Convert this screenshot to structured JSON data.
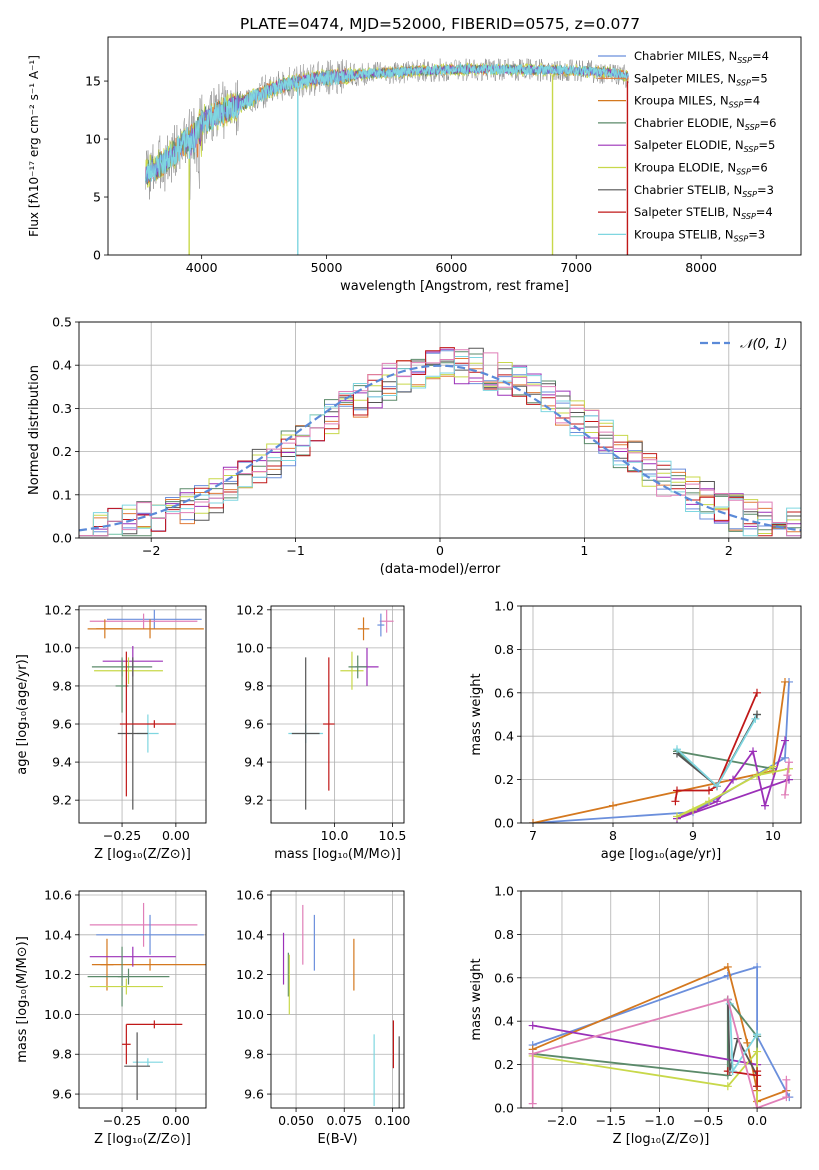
{
  "figure_title": "PLATE=0474, MJD=52000, FIBERID=0575, z=0.077",
  "colors": {
    "Chabrier MILES": "#6b8fdc",
    "Salpeter MILES": "#e07b39",
    "Kroupa MILES": "#d4781f",
    "Chabrier ELODIE": "#5b8a6a",
    "Salpeter ELODIE": "#9b30b8",
    "Kroupa ELODIE": "#c8d84a",
    "Chabrier STELIB": "#555555",
    "Salpeter STELIB": "#c01818",
    "Kroupa STELIB": "#7fd6e0",
    "pink": "#e07fb8",
    "normal_curve": "#5b8ad8"
  },
  "chart_data": [
    {
      "id": "spectrum",
      "type": "line",
      "title": "PLATE=0474, MJD=52000, FIBERID=0575, z=0.077",
      "xlabel": "wavelength [Angstrom, rest frame]",
      "ylabel": "Flux [fλ10⁻¹⁷ erg cm⁻² s⁻¹ A⁻¹]",
      "xlim": [
        3250,
        8800
      ],
      "ylim": [
        0,
        18.8
      ],
      "xticks": [
        4000,
        5000,
        6000,
        7000,
        8000
      ],
      "yticks": [
        0,
        5,
        10,
        15
      ],
      "grid": false,
      "legend_position": "right",
      "legend": [
        {
          "label": "Chabrier MILES, N",
          "sub": "SSP",
          "tail": "=4",
          "color": "#6b8fdc"
        },
        {
          "label": "Salpeter MILES, N",
          "sub": "SSP",
          "tail": "=5",
          "color": "#e07b39"
        },
        {
          "label": "Kroupa MILES, N",
          "sub": "SSP",
          "tail": "=4",
          "color": "#d4781f"
        },
        {
          "label": "Chabrier ELODIE, N",
          "sub": "SSP",
          "tail": "=6",
          "color": "#5b8a6a"
        },
        {
          "label": "Salpeter ELODIE, N",
          "sub": "SSP",
          "tail": "=5",
          "color": "#9b30b8"
        },
        {
          "label": "Kroupa ELODIE, N",
          "sub": "SSP",
          "tail": "=6",
          "color": "#c8d84a"
        },
        {
          "label": "Chabrier STELIB, N",
          "sub": "SSP",
          "tail": "=3",
          "color": "#555555"
        },
        {
          "label": "Salpeter STELIB, N",
          "sub": "SSP",
          "tail": "=4",
          "color": "#c01818"
        },
        {
          "label": "Kroupa STELIB, N",
          "sub": "SSP",
          "tail": "=3",
          "color": "#7fd6e0"
        }
      ],
      "continuum_envelope": {
        "x": [
          3550,
          3700,
          3850,
          3950,
          4000,
          4200,
          4400,
          4600,
          4800,
          5000,
          5300,
          5600,
          6000,
          6500,
          7000,
          7300,
          7400
        ],
        "y": [
          7.0,
          8.0,
          9.5,
          10.5,
          11.5,
          12.5,
          13.5,
          14.5,
          15.0,
          15.3,
          15.6,
          15.8,
          16.0,
          16.0,
          15.9,
          15.7,
          15.4
        ]
      },
      "dropouts": [
        {
          "x": 3900,
          "color": "#c8d84a",
          "from": 8.3
        },
        {
          "x": 4770,
          "color": "#7fd6e0",
          "from": 14.8
        },
        {
          "x": 6810,
          "color": "#c8d84a",
          "from": 15.5
        },
        {
          "x": 7410,
          "color": "#c01818",
          "from": 15.0
        }
      ]
    },
    {
      "id": "residuals",
      "type": "line",
      "xlabel": "(data-model)/error",
      "ylabel": "Normed distribution",
      "xlim": [
        -2.5,
        2.5
      ],
      "ylim": [
        0,
        0.5
      ],
      "xticks": [
        -2,
        -1,
        0,
        1,
        2
      ],
      "yticks": [
        0.0,
        0.1,
        0.2,
        0.3,
        0.4,
        0.5
      ],
      "grid": true,
      "legend_position": "top-right",
      "legend": [
        {
          "label": "𝒩(0, 1)",
          "color": "#5b8ad8"
        }
      ],
      "bin_width": 0.1,
      "bin_start": -2.5,
      "series_colors": [
        "#6b8fdc",
        "#e07b39",
        "#5b8a6a",
        "#9b30b8",
        "#c8d84a",
        "#555555",
        "#c01818",
        "#7fd6e0",
        "#e07fb8"
      ]
    },
    {
      "id": "age-vs-Z",
      "type": "scatter",
      "xlabel": "Z [log₁₀(Z/Z⊙)]",
      "ylabel": "age  [log₁₀(age/yr)]",
      "xlim": [
        -0.45,
        0.14
      ],
      "ylim": [
        9.08,
        10.22
      ],
      "xticks": [
        -0.25,
        0.0
      ],
      "xticklabels": [
        "−0.25",
        "0.00"
      ],
      "yticks": [
        9.2,
        9.4,
        9.6,
        9.8,
        10.0,
        10.2
      ],
      "grid": true,
      "points": [
        {
          "x": -0.1,
          "y": 10.15,
          "xerr": 0.22,
          "yerr": 0.05,
          "color": "#6b8fdc"
        },
        {
          "x": -0.15,
          "y": 10.14,
          "xerr": 0.25,
          "yerr": 0.04,
          "color": "#e07fb8"
        },
        {
          "x": -0.33,
          "y": 10.1,
          "xerr": 0.08,
          "yerr": 0.05,
          "color": "#d4781f"
        },
        {
          "x": -0.12,
          "y": 10.1,
          "xerr": 0.25,
          "yerr": 0.05,
          "color": "#d4781f"
        },
        {
          "x": -0.25,
          "y": 9.8,
          "xerr": 0.03,
          "yerr": 0.14,
          "color": "#5b8a6a"
        },
        {
          "x": -0.2,
          "y": 9.93,
          "xerr": 0.14,
          "yerr": 0.08,
          "color": "#9b30b8"
        },
        {
          "x": -0.22,
          "y": 9.88,
          "xerr": 0.16,
          "yerr": 0.07,
          "color": "#c8d84a"
        },
        {
          "x": -0.25,
          "y": 9.9,
          "xerr": 0.14,
          "yerr": 0.05,
          "color": "#5b8a6a"
        },
        {
          "x": -0.13,
          "y": 9.55,
          "xerr": 0.05,
          "yerr": 0.1,
          "color": "#7fd6e0"
        },
        {
          "x": -0.2,
          "y": 9.55,
          "xerr": 0.07,
          "yerr": 0.4,
          "color": "#555555"
        },
        {
          "x": -0.23,
          "y": 9.6,
          "xerr": 0.03,
          "yerr": 0.38,
          "color": "#c01818"
        },
        {
          "x": -0.1,
          "y": 9.6,
          "xerr": 0.1,
          "yerr": 0.02,
          "color": "#c01818"
        }
      ]
    },
    {
      "id": "age-vs-mass",
      "type": "scatter",
      "xlabel": "mass [log₁₀(M/M⊙)]",
      "ylabel": "",
      "xlim": [
        9.45,
        10.6
      ],
      "ylim": [
        9.08,
        10.22
      ],
      "xticks": [
        10.0,
        10.5
      ],
      "xticklabels": [
        "10.0",
        "10.5"
      ],
      "yticks": [
        9.2,
        9.4,
        9.6,
        9.8,
        10.0,
        10.2
      ],
      "grid": true,
      "points": [
        {
          "x": 10.45,
          "y": 10.14,
          "xerr": 0.06,
          "yerr": 0.06,
          "color": "#e07fb8"
        },
        {
          "x": 10.4,
          "y": 10.12,
          "xerr": 0.03,
          "yerr": 0.06,
          "color": "#6b8fdc"
        },
        {
          "x": 10.25,
          "y": 10.1,
          "xerr": 0.05,
          "yerr": 0.06,
          "color": "#d4781f"
        },
        {
          "x": 10.28,
          "y": 9.9,
          "xerr": 0.1,
          "yerr": 0.1,
          "color": "#9b30b8"
        },
        {
          "x": 10.15,
          "y": 9.88,
          "xerr": 0.1,
          "yerr": 0.1,
          "color": "#c8d84a"
        },
        {
          "x": 10.2,
          "y": 9.9,
          "xerr": 0.08,
          "yerr": 0.06,
          "color": "#5b8a6a"
        },
        {
          "x": 9.75,
          "y": 9.55,
          "xerr": 0.15,
          "yerr": 0.05,
          "color": "#7fd6e0"
        },
        {
          "x": 9.75,
          "y": 9.55,
          "xerr": 0.12,
          "yerr": 0.4,
          "color": "#555555"
        },
        {
          "x": 9.95,
          "y": 9.6,
          "xerr": 0.05,
          "yerr": 0.35,
          "color": "#c01818"
        }
      ]
    },
    {
      "id": "massweight-vs-age",
      "type": "line",
      "xlabel": "age  [log₁₀(age/yr)]",
      "ylabel": "mass weight",
      "xlim": [
        6.85,
        10.35
      ],
      "ylim": [
        0.0,
        1.0
      ],
      "xticks": [
        7,
        8,
        9,
        10
      ],
      "yticks": [
        0.0,
        0.2,
        0.4,
        0.6,
        0.8,
        1.0
      ],
      "grid": true,
      "series": [
        {
          "color": "#6b8fdc",
          "x": [
            10.2,
            10.15,
            9.0,
            7.0
          ],
          "y": [
            0.65,
            0.3,
            0.05,
            0.0
          ]
        },
        {
          "color": "#d4781f",
          "x": [
            10.15,
            10.0,
            8.0,
            7.0
          ],
          "y": [
            0.65,
            0.24,
            0.08,
            0.0
          ]
        },
        {
          "color": "#5b8a6a",
          "x": [
            9.8,
            9.3,
            8.8,
            10.0
          ],
          "y": [
            0.5,
            0.17,
            0.33,
            0.25
          ]
        },
        {
          "color": "#9b30b8",
          "x": [
            10.15,
            9.9,
            9.75,
            9.5,
            9.3,
            8.8,
            10.2
          ],
          "y": [
            0.38,
            0.08,
            0.33,
            0.2,
            0.1,
            0.02,
            0.2
          ]
        },
        {
          "color": "#c8d84a",
          "x": [
            10.2,
            9.8,
            9.0,
            8.8,
            9.2,
            10.0
          ],
          "y": [
            0.25,
            0.22,
            0.06,
            0.03,
            0.1,
            0.26
          ]
        },
        {
          "color": "#555555",
          "x": [
            9.8,
            9.3,
            8.8
          ],
          "y": [
            0.5,
            0.17,
            0.32
          ]
        },
        {
          "color": "#c01818",
          "x": [
            9.8,
            9.3,
            9.2,
            8.8,
            8.78
          ],
          "y": [
            0.6,
            0.17,
            0.15,
            0.15,
            0.1
          ]
        },
        {
          "color": "#7fd6e0",
          "x": [
            9.78,
            9.3,
            8.8
          ],
          "y": [
            0.48,
            0.17,
            0.34
          ]
        },
        {
          "color": "#e07fb8",
          "x": [
            10.2,
            10.18,
            10.15
          ],
          "y": [
            0.28,
            0.22,
            0.13
          ]
        }
      ]
    },
    {
      "id": "mass-vs-Z",
      "type": "scatter",
      "xlabel": "Z [log₁₀(Z/Z⊙)]",
      "ylabel": "mass [log₁₀(M/M⊙)]",
      "xlim": [
        -0.45,
        0.14
      ],
      "ylim": [
        9.53,
        10.62
      ],
      "xticks": [
        -0.25,
        0.0
      ],
      "xticklabels": [
        "−0.25",
        "0.00"
      ],
      "yticks": [
        9.6,
        9.8,
        10.0,
        10.2,
        10.4,
        10.6
      ],
      "grid": true,
      "points": [
        {
          "x": -0.15,
          "y": 10.45,
          "xerr": 0.25,
          "yerr": 0.11,
          "color": "#e07fb8"
        },
        {
          "x": -0.12,
          "y": 10.4,
          "xerr": 0.25,
          "yerr": 0.1,
          "color": "#6b8fdc"
        },
        {
          "x": -0.12,
          "y": 10.25,
          "xerr": 0.27,
          "yerr": 0.03,
          "color": "#d4781f"
        },
        {
          "x": -0.32,
          "y": 10.25,
          "xerr": 0.03,
          "yerr": 0.13,
          "color": "#d4781f"
        },
        {
          "x": -0.2,
          "y": 10.29,
          "xerr": 0.2,
          "yerr": 0.05,
          "color": "#9b30b8"
        },
        {
          "x": -0.22,
          "y": 10.19,
          "xerr": 0.19,
          "yerr": 0.04,
          "color": "#5b8a6a"
        },
        {
          "x": -0.25,
          "y": 10.19,
          "xerr": 0.02,
          "yerr": 0.15,
          "color": "#5b8a6a"
        },
        {
          "x": -0.23,
          "y": 10.14,
          "xerr": 0.17,
          "yerr": 0.04,
          "color": "#c8d84a"
        },
        {
          "x": -0.13,
          "y": 9.76,
          "xerr": 0.07,
          "yerr": 0.02,
          "color": "#7fd6e0"
        },
        {
          "x": -0.18,
          "y": 9.74,
          "xerr": 0.06,
          "yerr": 0.17,
          "color": "#555555"
        },
        {
          "x": -0.1,
          "y": 9.95,
          "xerr": 0.13,
          "yerr": 0.02,
          "color": "#c01818"
        },
        {
          "x": -0.23,
          "y": 9.85,
          "xerr": 0.02,
          "yerr": 0.1,
          "color": "#c01818"
        }
      ]
    },
    {
      "id": "mass-vs-EBV",
      "type": "scatter",
      "xlabel": "E(B-V)",
      "ylabel": "",
      "xlim": [
        0.037,
        0.106
      ],
      "ylim": [
        9.53,
        10.62
      ],
      "xticks": [
        0.05,
        0.075,
        0.1
      ],
      "xticklabels": [
        "0.050",
        "0.075",
        "0.100"
      ],
      "yticks": [
        9.6,
        9.8,
        10.0,
        10.2,
        10.4,
        10.6
      ],
      "grid": true,
      "points": [
        {
          "x": 0.0435,
          "y": 10.28,
          "yerr": 0.13,
          "color": "#9b30b8"
        },
        {
          "x": 0.046,
          "y": 10.2,
          "yerr": 0.11,
          "color": "#5b8a6a"
        },
        {
          "x": 0.0465,
          "y": 10.15,
          "yerr": 0.15,
          "color": "#c8d84a"
        },
        {
          "x": 0.0535,
          "y": 10.4,
          "yerr": 0.15,
          "color": "#e07fb8"
        },
        {
          "x": 0.0595,
          "y": 10.36,
          "yerr": 0.14,
          "color": "#6b8fdc"
        },
        {
          "x": 0.08,
          "y": 10.25,
          "yerr": 0.13,
          "color": "#d4781f"
        },
        {
          "x": 0.0905,
          "y": 9.72,
          "yerr": 0.18,
          "color": "#7fd6e0"
        },
        {
          "x": 0.1005,
          "y": 9.85,
          "yerr": 0.12,
          "color": "#c01818"
        },
        {
          "x": 0.1035,
          "y": 9.65,
          "yerr": 0.24,
          "color": "#555555"
        }
      ]
    },
    {
      "id": "massweight-vs-Z",
      "type": "line",
      "xlabel": "Z [log₁₀(Z/Z⊙)]",
      "ylabel": "mass weight",
      "xlim": [
        -2.42,
        0.45
      ],
      "ylim": [
        0.0,
        1.0
      ],
      "xticks": [
        -2.0,
        -1.5,
        -1.0,
        -0.5,
        0.0
      ],
      "xticklabels": [
        "−2.0",
        "−1.5",
        "−1.0",
        "−0.5",
        "0.0"
      ],
      "yticks": [
        0.0,
        0.2,
        0.4,
        0.6,
        0.8,
        1.0
      ],
      "grid": true,
      "series": [
        {
          "color": "#6b8fdc",
          "x": [
            -2.3,
            -0.3,
            0.0,
            0.0,
            0.33
          ],
          "y": [
            0.29,
            0.61,
            0.65,
            0.33,
            0.05
          ]
        },
        {
          "color": "#d4781f",
          "x": [
            -2.3,
            -0.3,
            -0.1,
            0.0,
            0.0,
            0.3
          ],
          "y": [
            0.27,
            0.65,
            0.3,
            0.08,
            0.03,
            0.08
          ]
        },
        {
          "color": "#5b8a6a",
          "x": [
            -2.3,
            -0.3,
            -0.3,
            0.0,
            0.0
          ],
          "y": [
            0.25,
            0.15,
            0.5,
            0.33,
            0.1
          ]
        },
        {
          "color": "#9b30b8",
          "x": [
            -2.3,
            0.0
          ],
          "y": [
            0.38,
            0.2
          ]
        },
        {
          "color": "#c8d84a",
          "x": [
            -2.3,
            -0.3,
            0.0,
            0.0
          ],
          "y": [
            0.24,
            0.1,
            0.26,
            0.0
          ]
        },
        {
          "color": "#555555",
          "x": [
            -0.3,
            -0.28,
            -0.2,
            0.0
          ],
          "y": [
            0.5,
            0.17,
            0.32,
            0.15
          ]
        },
        {
          "color": "#c01818",
          "x": [
            -0.3,
            0.0,
            0.0,
            0.0
          ],
          "y": [
            0.17,
            0.15,
            0.1,
            0.17
          ]
        },
        {
          "color": "#7fd6e0",
          "x": [
            -0.28,
            -0.25,
            0.0
          ],
          "y": [
            0.48,
            0.17,
            0.34
          ]
        },
        {
          "color": "#e07fb8",
          "x": [
            -2.3,
            -2.3,
            -0.3,
            0.0,
            0.3,
            0.3
          ],
          "y": [
            0.02,
            0.25,
            0.5,
            0.0,
            0.05,
            0.13
          ]
        }
      ]
    }
  ]
}
